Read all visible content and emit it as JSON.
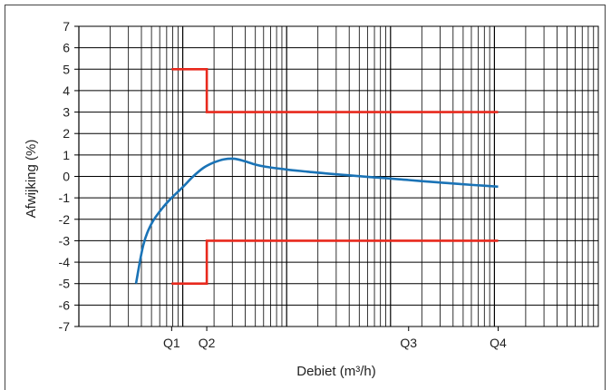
{
  "chart_data": {
    "type": "line",
    "xlabel": "Debiet (m³/h)",
    "ylabel": "Afwijking (%)",
    "ylim": [
      -7,
      7
    ],
    "yticks": [
      7,
      6,
      5,
      4,
      3,
      2,
      1,
      0,
      -1,
      -2,
      -3,
      -4,
      -5,
      -6,
      -7
    ],
    "x_scale": "log",
    "xlim_decades": [
      0,
      5
    ],
    "grid": true,
    "x_tick_labels": [
      {
        "label": "Q1",
        "pos": 0.893
      },
      {
        "label": "Q2",
        "pos": 1.231
      },
      {
        "label": "Q3",
        "pos": 3.174
      },
      {
        "label": "Q4",
        "pos": 4.036
      }
    ],
    "series": [
      {
        "color": "#e8291d",
        "segments": [
          [
            [
              0.893,
              5
            ],
            [
              1.231,
              5
            ],
            [
              1.231,
              3
            ],
            [
              4.036,
              3
            ]
          ],
          [
            [
              0.893,
              -5
            ],
            [
              1.231,
              -5
            ],
            [
              1.231,
              -3
            ],
            [
              4.036,
              -3
            ]
          ]
        ]
      },
      {
        "color": "#1a73b6",
        "points": [
          [
            0.55,
            -5
          ],
          [
            0.62,
            -3.2
          ],
          [
            0.7,
            -2.2
          ],
          [
            0.8,
            -1.5
          ],
          [
            0.893,
            -1.0
          ],
          [
            1.0,
            -0.5
          ],
          [
            1.1,
            0.0
          ],
          [
            1.2,
            0.4
          ],
          [
            1.3,
            0.65
          ],
          [
            1.4,
            0.8
          ],
          [
            1.5,
            0.82
          ],
          [
            1.6,
            0.7
          ],
          [
            1.7,
            0.55
          ],
          [
            1.8,
            0.45
          ],
          [
            2.0,
            0.32
          ],
          [
            2.2,
            0.22
          ],
          [
            2.4,
            0.13
          ],
          [
            2.6,
            0.05
          ],
          [
            2.8,
            -0.03
          ],
          [
            3.0,
            -0.1
          ],
          [
            3.174,
            -0.17
          ],
          [
            3.4,
            -0.26
          ],
          [
            3.6,
            -0.33
          ],
          [
            3.8,
            -0.4
          ],
          [
            4.036,
            -0.48
          ]
        ]
      }
    ]
  }
}
